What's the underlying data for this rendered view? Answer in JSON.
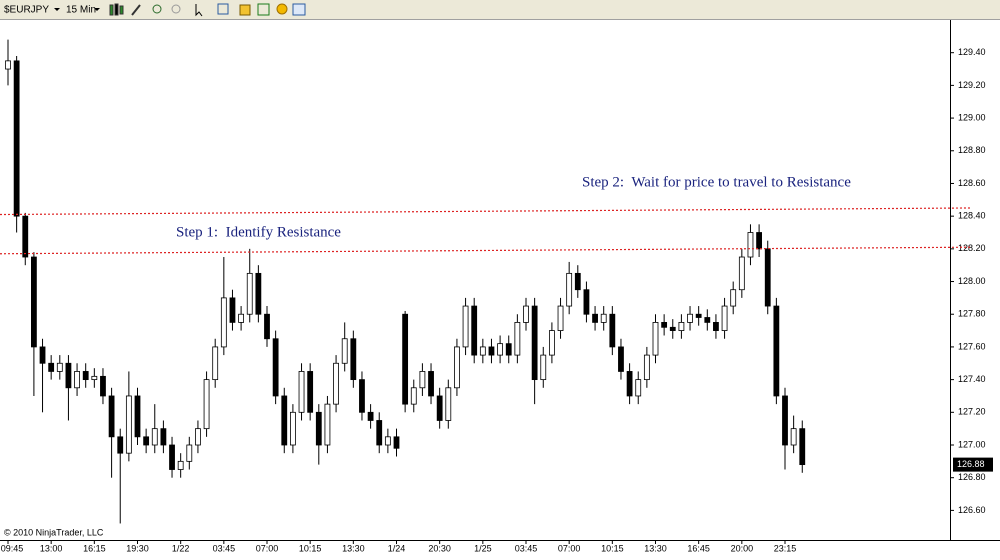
{
  "toolbar": {
    "instrument": "$EURJPY",
    "interval": "15 Min"
  },
  "chart_data": {
    "type": "candlestick",
    "categories": [
      "09:45",
      null,
      null,
      null,
      null,
      "13:00",
      null,
      null,
      null,
      null,
      "16:15",
      null,
      null,
      null,
      null,
      "19:30",
      null,
      null,
      null,
      null,
      "1/22",
      null,
      null,
      null,
      null,
      "03:45",
      null,
      null,
      null,
      null,
      "07:00",
      null,
      null,
      null,
      null,
      "10:15",
      null,
      null,
      null,
      null,
      "13:30",
      null,
      null,
      null,
      null,
      "1/24",
      null,
      null,
      null,
      null,
      "20:30",
      null,
      null,
      null,
      null,
      "1/25",
      null,
      null,
      null,
      null,
      "03:45",
      null,
      null,
      null,
      null,
      "07:00",
      null,
      null,
      null,
      null,
      "10:15",
      null,
      null,
      null,
      null,
      "13:30",
      null,
      null,
      null,
      null,
      "16:45",
      null,
      null,
      null,
      null,
      "20:00",
      null,
      null,
      null,
      null,
      "23:15",
      null,
      null
    ],
    "open": [
      129.3,
      129.35,
      128.4,
      128.15,
      127.6,
      127.5,
      127.45,
      127.5,
      127.35,
      127.45,
      127.4,
      127.42,
      127.3,
      127.05,
      126.95,
      127.3,
      127.05,
      127.0,
      127.1,
      127.0,
      126.85,
      126.9,
      127.0,
      127.1,
      127.4,
      127.6,
      127.9,
      127.75,
      127.8,
      128.05,
      127.8,
      127.65,
      127.3,
      127.0,
      127.2,
      127.45,
      127.2,
      127.0,
      127.25,
      127.5,
      127.65,
      127.4,
      127.2,
      127.15,
      127.0,
      127.05,
      127.8,
      127.25,
      127.35,
      127.45,
      127.3,
      127.15,
      127.35,
      127.6,
      127.85,
      127.55,
      127.6,
      127.55,
      127.62,
      127.55,
      127.75,
      127.85,
      127.4,
      127.55,
      127.7,
      127.85,
      128.05,
      127.95,
      127.8,
      127.75,
      127.8,
      127.6,
      127.45,
      127.3,
      127.4,
      127.55,
      127.75,
      127.72,
      127.7,
      127.75,
      127.8,
      127.78,
      127.75,
      127.7,
      127.85,
      127.95,
      128.15,
      128.3,
      128.2,
      127.85,
      127.3,
      127.0,
      127.1
    ],
    "high": [
      129.48,
      129.38,
      128.42,
      128.18,
      127.65,
      127.55,
      127.55,
      127.55,
      127.5,
      127.5,
      127.47,
      127.47,
      127.35,
      127.1,
      127.45,
      127.35,
      127.1,
      127.25,
      127.15,
      127.05,
      126.95,
      127.05,
      127.15,
      127.45,
      127.65,
      128.15,
      127.95,
      127.85,
      128.2,
      128.1,
      127.85,
      127.7,
      127.35,
      127.25,
      127.5,
      127.5,
      127.25,
      127.3,
      127.55,
      127.75,
      127.7,
      127.45,
      127.25,
      127.2,
      127.1,
      127.1,
      127.82,
      127.4,
      127.5,
      127.5,
      127.35,
      127.4,
      127.65,
      127.9,
      127.9,
      127.65,
      127.65,
      127.67,
      127.67,
      127.8,
      127.9,
      127.9,
      127.6,
      127.75,
      127.9,
      128.12,
      128.1,
      128.0,
      127.85,
      127.85,
      127.85,
      127.65,
      127.5,
      127.45,
      127.6,
      127.8,
      127.8,
      127.77,
      127.8,
      127.85,
      127.85,
      127.83,
      127.8,
      127.9,
      128.0,
      128.2,
      128.35,
      128.35,
      128.25,
      127.9,
      127.35,
      127.18,
      127.15
    ],
    "low": [
      129.2,
      128.3,
      128.1,
      127.3,
      127.2,
      127.4,
      127.4,
      127.15,
      127.3,
      127.35,
      127.35,
      127.25,
      126.8,
      126.52,
      126.9,
      127.0,
      126.95,
      126.95,
      126.95,
      126.8,
      126.8,
      126.85,
      126.95,
      127.05,
      127.35,
      127.55,
      127.7,
      127.7,
      127.75,
      127.75,
      127.6,
      127.25,
      126.95,
      126.95,
      127.15,
      127.15,
      126.88,
      126.95,
      127.2,
      127.45,
      127.35,
      127.15,
      127.1,
      126.95,
      126.95,
      126.93,
      127.2,
      127.2,
      127.3,
      127.25,
      127.1,
      127.1,
      127.3,
      127.55,
      127.5,
      127.5,
      127.5,
      127.5,
      127.5,
      127.5,
      127.7,
      127.25,
      127.35,
      127.5,
      127.65,
      127.8,
      127.9,
      127.75,
      127.7,
      127.7,
      127.55,
      127.4,
      127.25,
      127.25,
      127.35,
      127.5,
      127.67,
      127.65,
      127.65,
      127.7,
      127.73,
      127.7,
      127.65,
      127.65,
      127.8,
      127.9,
      128.1,
      128.15,
      127.8,
      127.25,
      126.85,
      126.95,
      126.83
    ],
    "close": [
      129.35,
      128.4,
      128.15,
      127.6,
      127.5,
      127.45,
      127.5,
      127.35,
      127.45,
      127.4,
      127.42,
      127.3,
      127.05,
      126.95,
      127.3,
      127.05,
      127.0,
      127.1,
      127.0,
      126.85,
      126.9,
      127.0,
      127.1,
      127.4,
      127.6,
      127.9,
      127.75,
      127.8,
      128.05,
      127.8,
      127.65,
      127.3,
      127.0,
      127.2,
      127.45,
      127.2,
      127.0,
      127.25,
      127.5,
      127.65,
      127.4,
      127.2,
      127.15,
      127.0,
      127.05,
      126.98,
      127.25,
      127.35,
      127.45,
      127.3,
      127.15,
      127.35,
      127.6,
      127.85,
      127.55,
      127.6,
      127.55,
      127.62,
      127.55,
      127.75,
      127.85,
      127.4,
      127.55,
      127.7,
      127.85,
      128.05,
      127.95,
      127.8,
      127.75,
      127.8,
      127.6,
      127.45,
      127.3,
      127.4,
      127.55,
      127.75,
      127.72,
      127.7,
      127.75,
      127.8,
      127.78,
      127.75,
      127.7,
      127.85,
      127.95,
      128.15,
      128.3,
      128.2,
      127.85,
      127.3,
      127.0,
      127.1,
      126.88
    ],
    "up_color": "#ffffff",
    "down_color": "#000000",
    "ylim": [
      126.48,
      129.6
    ],
    "yticks": [
      {
        "value": 126.6,
        "label": "126.60"
      },
      {
        "value": 126.8,
        "label": "126.80"
      },
      {
        "value": 127,
        "label": "127.00"
      },
      {
        "value": 127.2,
        "label": "127.20"
      },
      {
        "value": 127.4,
        "label": "127.40"
      },
      {
        "value": 127.6,
        "label": "127.60"
      },
      {
        "value": 127.8,
        "label": "127.80"
      },
      {
        "value": 128,
        "label": "128.00"
      },
      {
        "value": 128.2,
        "label": "128.20"
      },
      {
        "value": 128.4,
        "label": "128.40"
      },
      {
        "value": 128.6,
        "label": "128.60"
      },
      {
        "value": 128.8,
        "label": "128.80"
      },
      {
        "value": 129,
        "label": "129.00"
      },
      {
        "value": 129.2,
        "label": "129.20"
      },
      {
        "value": 129.4,
        "label": "129.40"
      }
    ],
    "grid": false,
    "last_price": 126.88,
    "resistance_lines": [
      {
        "values": [
          128.17,
          128.21
        ],
        "color": "#dd2222"
      },
      {
        "values": [
          128.41,
          128.45
        ],
        "color": "#dd2222"
      }
    ],
    "annotations": [
      {
        "text": "Step 1:  Identify Resistance"
      },
      {
        "text": "Step 2:  Wait for price to travel to Resistance"
      }
    ],
    "credit": "© 2010 NinjaTrader, LLC"
  }
}
